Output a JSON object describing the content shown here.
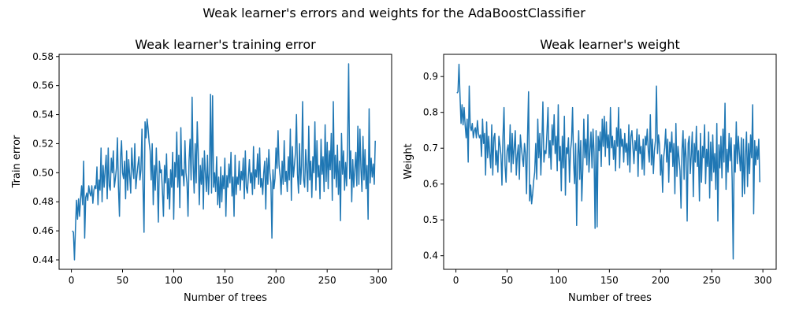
{
  "figure": {
    "suptitle": "Weak learner's errors and weights for the AdaBoostClassifier",
    "line_color": "#1f77b4"
  },
  "chart_data": [
    {
      "type": "line",
      "title": "Weak learner's training error",
      "xlabel": "Number of trees",
      "ylabel": "Train error",
      "xlim": [
        -12,
        313
      ],
      "ylim": [
        0.4335,
        0.5815
      ],
      "xticks": [
        0,
        50,
        100,
        150,
        200,
        250,
        300
      ],
      "yticks": [
        0.44,
        0.46,
        0.48,
        0.5,
        0.52,
        0.54,
        0.56,
        0.58
      ],
      "ytick_labels": [
        "0.44",
        "0.46",
        "0.48",
        "0.50",
        "0.52",
        "0.54",
        "0.56",
        "0.58"
      ],
      "grid": false,
      "x_start": 1,
      "values": [
        0.46,
        0.459,
        0.44,
        0.462,
        0.481,
        0.468,
        0.482,
        0.47,
        0.482,
        0.491,
        0.478,
        0.508,
        0.455,
        0.483,
        0.486,
        0.481,
        0.491,
        0.486,
        0.484,
        0.491,
        0.479,
        0.488,
        0.491,
        0.489,
        0.504,
        0.478,
        0.495,
        0.488,
        0.517,
        0.48,
        0.505,
        0.49,
        0.502,
        0.512,
        0.482,
        0.517,
        0.491,
        0.488,
        0.51,
        0.5,
        0.515,
        0.49,
        0.496,
        0.503,
        0.524,
        0.49,
        0.47,
        0.51,
        0.522,
        0.5,
        0.496,
        0.508,
        0.482,
        0.515,
        0.488,
        0.509,
        0.498,
        0.486,
        0.517,
        0.503,
        0.496,
        0.52,
        0.489,
        0.498,
        0.505,
        0.511,
        0.495,
        0.502,
        0.53,
        0.49,
        0.459,
        0.535,
        0.524,
        0.537,
        0.53,
        0.521,
        0.515,
        0.495,
        0.52,
        0.478,
        0.505,
        0.488,
        0.517,
        0.495,
        0.466,
        0.508,
        0.5,
        0.502,
        0.487,
        0.47,
        0.505,
        0.493,
        0.513,
        0.482,
        0.496,
        0.475,
        0.502,
        0.49,
        0.514,
        0.468,
        0.507,
        0.497,
        0.528,
        0.49,
        0.512,
        0.476,
        0.531,
        0.498,
        0.502,
        0.491,
        0.522,
        0.5,
        0.493,
        0.47,
        0.508,
        0.523,
        0.495,
        0.552,
        0.506,
        0.486,
        0.52,
        0.493,
        0.535,
        0.513,
        0.478,
        0.505,
        0.492,
        0.51,
        0.475,
        0.515,
        0.5,
        0.487,
        0.512,
        0.485,
        0.501,
        0.554,
        0.486,
        0.553,
        0.49,
        0.5,
        0.487,
        0.511,
        0.478,
        0.497,
        0.476,
        0.504,
        0.48,
        0.498,
        0.489,
        0.51,
        0.47,
        0.498,
        0.49,
        0.506,
        0.493,
        0.514,
        0.484,
        0.497,
        0.47,
        0.512,
        0.485,
        0.497,
        0.492,
        0.508,
        0.488,
        0.501,
        0.495,
        0.51,
        0.482,
        0.515,
        0.49,
        0.486,
        0.498,
        0.509,
        0.493,
        0.5,
        0.485,
        0.518,
        0.489,
        0.502,
        0.497,
        0.513,
        0.492,
        0.517,
        0.49,
        0.496,
        0.485,
        0.5,
        0.508,
        0.475,
        0.51,
        0.492,
        0.516,
        0.5,
        0.493,
        0.455,
        0.502,
        0.489,
        0.496,
        0.517,
        0.503,
        0.529,
        0.505,
        0.498,
        0.485,
        0.508,
        0.492,
        0.522,
        0.494,
        0.501,
        0.487,
        0.511,
        0.495,
        0.53,
        0.481,
        0.518,
        0.497,
        0.505,
        0.514,
        0.54,
        0.499,
        0.486,
        0.52,
        0.492,
        0.505,
        0.549,
        0.495,
        0.49,
        0.516,
        0.503,
        0.487,
        0.532,
        0.495,
        0.508,
        0.483,
        0.511,
        0.5,
        0.535,
        0.488,
        0.522,
        0.497,
        0.505,
        0.482,
        0.523,
        0.499,
        0.511,
        0.487,
        0.533,
        0.494,
        0.521,
        0.489,
        0.515,
        0.502,
        0.527,
        0.481,
        0.549,
        0.496,
        0.512,
        0.49,
        0.519,
        0.485,
        0.508,
        0.467,
        0.527,
        0.499,
        0.515,
        0.488,
        0.507,
        0.491,
        0.521,
        0.575,
        0.496,
        0.515,
        0.48,
        0.509,
        0.49,
        0.502,
        0.514,
        0.491,
        0.532,
        0.492,
        0.53,
        0.503,
        0.487,
        0.525,
        0.495,
        0.516,
        0.489,
        0.505,
        0.468,
        0.544,
        0.493,
        0.51,
        0.497,
        0.506,
        0.492,
        0.522
      ]
    },
    {
      "type": "line",
      "title": "Weak learner's weight",
      "xlabel": "Number of trees",
      "ylabel": "Weight",
      "xlim": [
        -12,
        313
      ],
      "ylim": [
        0.362,
        0.962
      ],
      "xticks": [
        0,
        50,
        100,
        150,
        200,
        250,
        300
      ],
      "yticks": [
        0.4,
        0.5,
        0.6,
        0.7,
        0.8,
        0.9
      ],
      "ytick_labels": [
        "0.4",
        "0.5",
        "0.6",
        "0.7",
        "0.8",
        "0.9"
      ],
      "grid": false,
      "x_start": 1,
      "derived_from": "weight = ln((1-error)/error) + ln(2) applied to the training-error series"
    }
  ]
}
